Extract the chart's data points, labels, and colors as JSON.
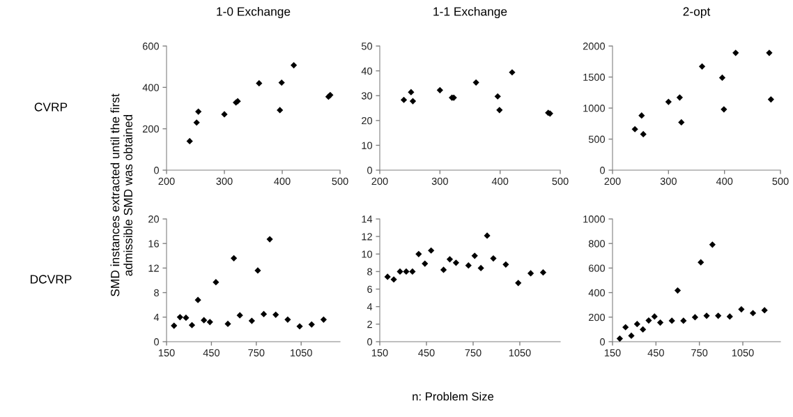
{
  "chart_data": [
    {
      "type": "scatter",
      "title": "1-0 Exchange",
      "ylabel": "SMD instances extracted until the first\nadmissible SMD was obtained",
      "annotations": [
        "CVRP"
      ],
      "marker": "diamond",
      "grid": false,
      "legend": false,
      "x": [
        240,
        252,
        255,
        300,
        320,
        323,
        360,
        396,
        399,
        420,
        480,
        483
      ],
      "series": [
        {
          "color": "#000000",
          "values": [
            140,
            230,
            283,
            270,
            327,
            333,
            420,
            290,
            423,
            507,
            355,
            363
          ]
        }
      ],
      "xlim": [
        200,
        500
      ],
      "xticks": [
        200,
        300,
        400,
        500
      ],
      "ylim": [
        0,
        600
      ],
      "yticks": [
        0,
        200,
        400,
        600
      ]
    },
    {
      "type": "scatter",
      "title": "1-1 Exchange",
      "marker": "diamond",
      "grid": false,
      "legend": false,
      "x": [
        240,
        252,
        255,
        300,
        320,
        323,
        360,
        396,
        399,
        420,
        480,
        483
      ],
      "series": [
        {
          "color": "#000000",
          "values": [
            28.3,
            31.4,
            27.8,
            32.2,
            29.2,
            29.2,
            35.3,
            29.7,
            24.2,
            39.4,
            23.1,
            22.8
          ]
        }
      ],
      "xlim": [
        200,
        500
      ],
      "xticks": [
        200,
        300,
        400,
        500
      ],
      "ylim": [
        0,
        50
      ],
      "yticks": [
        0,
        10,
        20,
        30,
        40,
        50
      ]
    },
    {
      "type": "scatter",
      "title": "2-opt",
      "marker": "diamond",
      "grid": false,
      "legend": false,
      "x": [
        240,
        252,
        255,
        300,
        320,
        323,
        360,
        396,
        399,
        420,
        480,
        483
      ],
      "series": [
        {
          "color": "#000000",
          "values": [
            660,
            880,
            580,
            1100,
            1170,
            770,
            1670,
            1490,
            980,
            1890,
            1890,
            1140
          ]
        }
      ],
      "xlim": [
        200,
        500
      ],
      "xticks": [
        200,
        300,
        400,
        500
      ],
      "ylim": [
        0,
        2000
      ],
      "yticks": [
        0,
        500,
        1000,
        1500,
        2000
      ]
    },
    {
      "type": "scatter",
      "annotations": [
        "DCVRP"
      ],
      "marker": "diamond",
      "grid": false,
      "legend": false,
      "x": [
        200,
        240,
        280,
        320,
        360,
        400,
        440,
        480,
        560,
        600,
        640,
        720,
        760,
        800,
        840,
        880,
        960,
        1040,
        1120,
        1200
      ],
      "series": [
        {
          "color": "#000000",
          "values": [
            2.6,
            4.0,
            3.9,
            2.7,
            6.8,
            3.5,
            3.2,
            9.7,
            2.9,
            13.6,
            4.3,
            3.4,
            11.6,
            4.5,
            16.7,
            4.4,
            3.6,
            2.5,
            2.8,
            3.6
          ]
        }
      ],
      "xlim": [
        150,
        1310
      ],
      "xticks": [
        150,
        450,
        750,
        1050
      ],
      "ylim": [
        0,
        20
      ],
      "yticks": [
        0,
        4,
        8,
        12,
        16,
        20
      ]
    },
    {
      "type": "scatter",
      "xlabel": "n: Problem Size",
      "marker": "diamond",
      "grid": false,
      "legend": false,
      "x": [
        200,
        240,
        280,
        320,
        360,
        400,
        440,
        480,
        560,
        600,
        640,
        720,
        760,
        800,
        840,
        880,
        960,
        1040,
        1120,
        1200
      ],
      "series": [
        {
          "color": "#000000",
          "values": [
            7.4,
            7.1,
            8.0,
            8.0,
            8.0,
            10.0,
            8.9,
            10.4,
            8.2,
            9.4,
            9.0,
            8.7,
            9.8,
            8.4,
            12.1,
            9.5,
            8.8,
            6.7,
            7.8,
            7.9
          ]
        }
      ],
      "xlim": [
        150,
        1310
      ],
      "xticks": [
        150,
        450,
        750,
        1050
      ],
      "ylim": [
        0,
        14
      ],
      "yticks": [
        0,
        2,
        4,
        6,
        8,
        10,
        12,
        14
      ]
    },
    {
      "type": "scatter",
      "marker": "diamond",
      "grid": false,
      "legend": false,
      "x": [
        200,
        240,
        280,
        320,
        360,
        400,
        440,
        480,
        560,
        600,
        640,
        720,
        760,
        800,
        840,
        880,
        960,
        1040,
        1120,
        1200
      ],
      "series": [
        {
          "color": "#000000",
          "values": [
            25,
            118,
            49,
            144,
            100,
            173,
            205,
            156,
            171,
            417,
            171,
            199,
            647,
            211,
            791,
            211,
            205,
            264,
            233,
            256
          ]
        }
      ],
      "xlim": [
        150,
        1310
      ],
      "xticks": [
        150,
        450,
        750,
        1050
      ],
      "ylim": [
        0,
        1000
      ],
      "yticks": [
        0,
        200,
        400,
        600,
        800,
        1000
      ]
    }
  ]
}
